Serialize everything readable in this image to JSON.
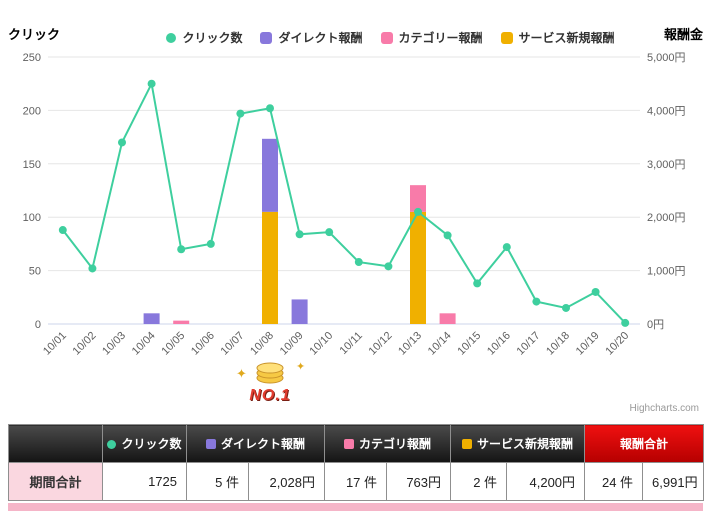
{
  "chart_data": {
    "type": "combo",
    "categories": [
      "10/01",
      "10/02",
      "10/03",
      "10/04",
      "10/05",
      "10/06",
      "10/07",
      "10/08",
      "10/09",
      "10/10",
      "10/11",
      "10/12",
      "10/13",
      "10/14",
      "10/15",
      "10/16",
      "10/17",
      "10/18",
      "10/19",
      "10/20"
    ],
    "series": [
      {
        "name": "クリック数",
        "type": "line",
        "axis": "left",
        "color": "#3ecf9e",
        "values": [
          88,
          52,
          170,
          225,
          70,
          75,
          197,
          202,
          84,
          86,
          58,
          54,
          105,
          83,
          38,
          72,
          21,
          15,
          30,
          1
        ]
      },
      {
        "name": "ダイレクト報酬",
        "type": "bar",
        "axis": "right",
        "color": "#8878dc",
        "values": [
          0,
          0,
          0,
          200,
          0,
          0,
          0,
          1368,
          460,
          0,
          0,
          0,
          0,
          0,
          0,
          0,
          0,
          0,
          0,
          0
        ]
      },
      {
        "name": "カテゴリー報酬",
        "type": "bar",
        "axis": "right",
        "color": "#f87ba9",
        "values": [
          0,
          0,
          0,
          0,
          63,
          0,
          0,
          0,
          0,
          0,
          0,
          0,
          500,
          200,
          0,
          0,
          0,
          0,
          0,
          0
        ]
      },
      {
        "name": "サービス新規報酬",
        "type": "bar",
        "axis": "right",
        "color": "#f0b000",
        "values": [
          0,
          0,
          0,
          0,
          0,
          0,
          0,
          2100,
          0,
          0,
          0,
          0,
          2100,
          0,
          0,
          0,
          0,
          0,
          0,
          0
        ]
      }
    ],
    "stack_order": [
      3,
      1,
      2
    ],
    "left_axis": {
      "title": "クリック",
      "min": 0,
      "max": 250,
      "ticks": [
        0,
        50,
        100,
        150,
        200,
        250
      ],
      "tick_labels": [
        "0",
        "50",
        "100",
        "150",
        "200",
        "250"
      ]
    },
    "right_axis": {
      "title": "報酬金",
      "min": 0,
      "max": 5000,
      "ticks": [
        0,
        1000,
        2000,
        3000,
        4000,
        5000
      ],
      "tick_labels": [
        "0円",
        "1,000円",
        "2,000円",
        "3,000円",
        "4,000円",
        "5,000円"
      ]
    },
    "legend_position": "top",
    "grid": true,
    "credit": "Highcharts.com"
  },
  "badge": {
    "text": "NO.1"
  },
  "table": {
    "header": [
      {
        "label": ""
      },
      {
        "label": "クリック数",
        "marker": "circle",
        "marker_color": "#3ecf9e"
      },
      {
        "label": "ダイレクト報酬",
        "marker": "square",
        "marker_color": "#8878dc"
      },
      {
        "label": "カテゴリ報酬",
        "marker": "square",
        "marker_color": "#f87ba9"
      },
      {
        "label": "サービス新規報酬",
        "marker": "square",
        "marker_color": "#f0b000"
      },
      {
        "label": "報酬合計"
      }
    ],
    "row": {
      "label": "期間合計",
      "values": [
        "1725",
        "5 件",
        "2,028円",
        "17 件",
        "763円",
        "2 件",
        "4,200円",
        "24 件",
        "6,991円"
      ]
    }
  }
}
